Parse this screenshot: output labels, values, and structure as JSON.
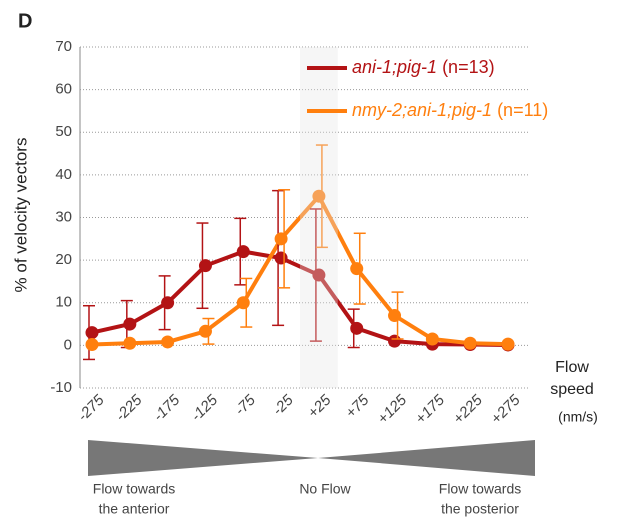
{
  "chart_data": {
    "type": "line",
    "panel_label": "D",
    "y_label": "% of velocity vectors",
    "x_label": [
      "Flow",
      "speed",
      "(nm/s)"
    ],
    "categories": [
      "-275",
      "-225",
      "-175",
      "-125",
      "-75",
      "-25",
      "+25",
      "+75",
      "+125",
      "+175",
      "+225",
      "+275"
    ],
    "series": [
      {
        "name": "ani-1;pig-1",
        "n_label": "(n=13)",
        "color": "#b31315",
        "values": [
          3,
          5,
          10,
          18.7,
          22,
          20.5,
          16.5,
          4,
          1,
          0.3,
          0.2,
          0.1
        ],
        "errors": [
          6.3,
          5.5,
          6.3,
          10,
          7.8,
          15.8,
          15.5,
          4.5,
          0,
          0,
          0,
          0
        ]
      },
      {
        "name": "nmy-2;ani-1;pig-1",
        "n_label": "(n=11)",
        "color": "#ff7f0e",
        "values": [
          0.2,
          0.5,
          0.8,
          3.3,
          10,
          25,
          35,
          18,
          7,
          1.5,
          0.5,
          0.3
        ],
        "errors": [
          0,
          0,
          0,
          3,
          5.7,
          11.5,
          12,
          8.3,
          5.5,
          0,
          0,
          0
        ]
      }
    ],
    "ylim": [
      -10,
      70
    ],
    "yticks": [
      -10,
      0,
      10,
      20,
      30,
      40,
      50,
      60,
      70
    ],
    "grid": true,
    "shaded_category": 6,
    "bottom_labels": [
      [
        "Flow towards",
        "the anterior"
      ],
      [
        "No Flow"
      ],
      [
        "Flow towards",
        "the posterior"
      ]
    ]
  }
}
